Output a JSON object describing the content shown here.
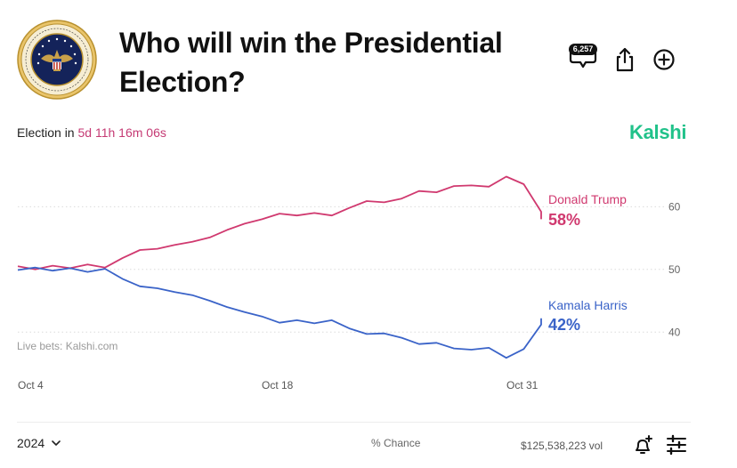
{
  "header": {
    "title": "Who will win the Presidential Election?",
    "seal_icon": "presidential-seal-icon",
    "comment_count": "6,257",
    "colors": {
      "brand": "#21c28a",
      "countdown": "#c53a74"
    }
  },
  "status": {
    "countdown_label": "Election in",
    "countdown_value": "5d 11h 16m 06s",
    "brand": "Kalshi"
  },
  "footer": {
    "year": "2024",
    "mode": "% Chance",
    "volume": "$125,538,223 vol"
  },
  "chart_data": {
    "type": "line",
    "x_axis": {
      "type": "date",
      "ticks": [
        "Oct 4",
        "Oct 18",
        "Oct 31"
      ],
      "range": [
        "2024-10-04",
        "2024-11-03"
      ]
    },
    "y_axis": {
      "ticks": [
        40,
        50,
        60
      ],
      "range": [
        35.5,
        67
      ],
      "position": "right",
      "grid": "dotted"
    },
    "annotation": "Live bets: Kalshi.com",
    "series": [
      {
        "name": "Donald Trump",
        "label": "58%",
        "color": "#d0396f",
        "points": [
          [
            "2024-10-04",
            50.5
          ],
          [
            "2024-10-05",
            50.0
          ],
          [
            "2024-10-06",
            50.6
          ],
          [
            "2024-10-07",
            50.2
          ],
          [
            "2024-10-08",
            50.8
          ],
          [
            "2024-10-09",
            50.3
          ],
          [
            "2024-10-10",
            51.8
          ],
          [
            "2024-10-11",
            53.1
          ],
          [
            "2024-10-12",
            53.3
          ],
          [
            "2024-10-13",
            53.9
          ],
          [
            "2024-10-14",
            54.4
          ],
          [
            "2024-10-15",
            55.1
          ],
          [
            "2024-10-16",
            56.3
          ],
          [
            "2024-10-17",
            57.3
          ],
          [
            "2024-10-18",
            58.0
          ],
          [
            "2024-10-19",
            58.9
          ],
          [
            "2024-10-20",
            58.6
          ],
          [
            "2024-10-21",
            59.0
          ],
          [
            "2024-10-22",
            58.6
          ],
          [
            "2024-10-23",
            59.8
          ],
          [
            "2024-10-24",
            60.9
          ],
          [
            "2024-10-25",
            60.7
          ],
          [
            "2024-10-26",
            61.3
          ],
          [
            "2024-10-27",
            62.5
          ],
          [
            "2024-10-28",
            62.3
          ],
          [
            "2024-10-29",
            63.3
          ],
          [
            "2024-10-30",
            63.4
          ],
          [
            "2024-10-31",
            63.2
          ],
          [
            "2024-11-01",
            64.8
          ],
          [
            "2024-11-02",
            63.6
          ],
          [
            "2024-11-03",
            59.2
          ],
          [
            "2024-11-03",
            58.0
          ]
        ]
      },
      {
        "name": "Kamala Harris",
        "label": "42%",
        "color": "#3a63c8",
        "points": [
          [
            "2024-10-04",
            49.9
          ],
          [
            "2024-10-05",
            50.3
          ],
          [
            "2024-10-06",
            49.8
          ],
          [
            "2024-10-07",
            50.2
          ],
          [
            "2024-10-08",
            49.6
          ],
          [
            "2024-10-09",
            50.1
          ],
          [
            "2024-10-10",
            48.5
          ],
          [
            "2024-10-11",
            47.3
          ],
          [
            "2024-10-12",
            47.0
          ],
          [
            "2024-10-13",
            46.4
          ],
          [
            "2024-10-14",
            45.9
          ],
          [
            "2024-10-15",
            45.0
          ],
          [
            "2024-10-16",
            44.0
          ],
          [
            "2024-10-17",
            43.2
          ],
          [
            "2024-10-18",
            42.5
          ],
          [
            "2024-10-19",
            41.5
          ],
          [
            "2024-10-20",
            41.9
          ],
          [
            "2024-10-21",
            41.4
          ],
          [
            "2024-10-22",
            41.9
          ],
          [
            "2024-10-23",
            40.6
          ],
          [
            "2024-10-24",
            39.7
          ],
          [
            "2024-10-25",
            39.8
          ],
          [
            "2024-10-26",
            39.1
          ],
          [
            "2024-10-27",
            38.1
          ],
          [
            "2024-10-28",
            38.3
          ],
          [
            "2024-10-29",
            37.4
          ],
          [
            "2024-10-30",
            37.2
          ],
          [
            "2024-10-31",
            37.5
          ],
          [
            "2024-11-01",
            35.9
          ],
          [
            "2024-11-02",
            37.3
          ],
          [
            "2024-11-03",
            41.2
          ],
          [
            "2024-11-03",
            42.2
          ]
        ]
      }
    ]
  }
}
